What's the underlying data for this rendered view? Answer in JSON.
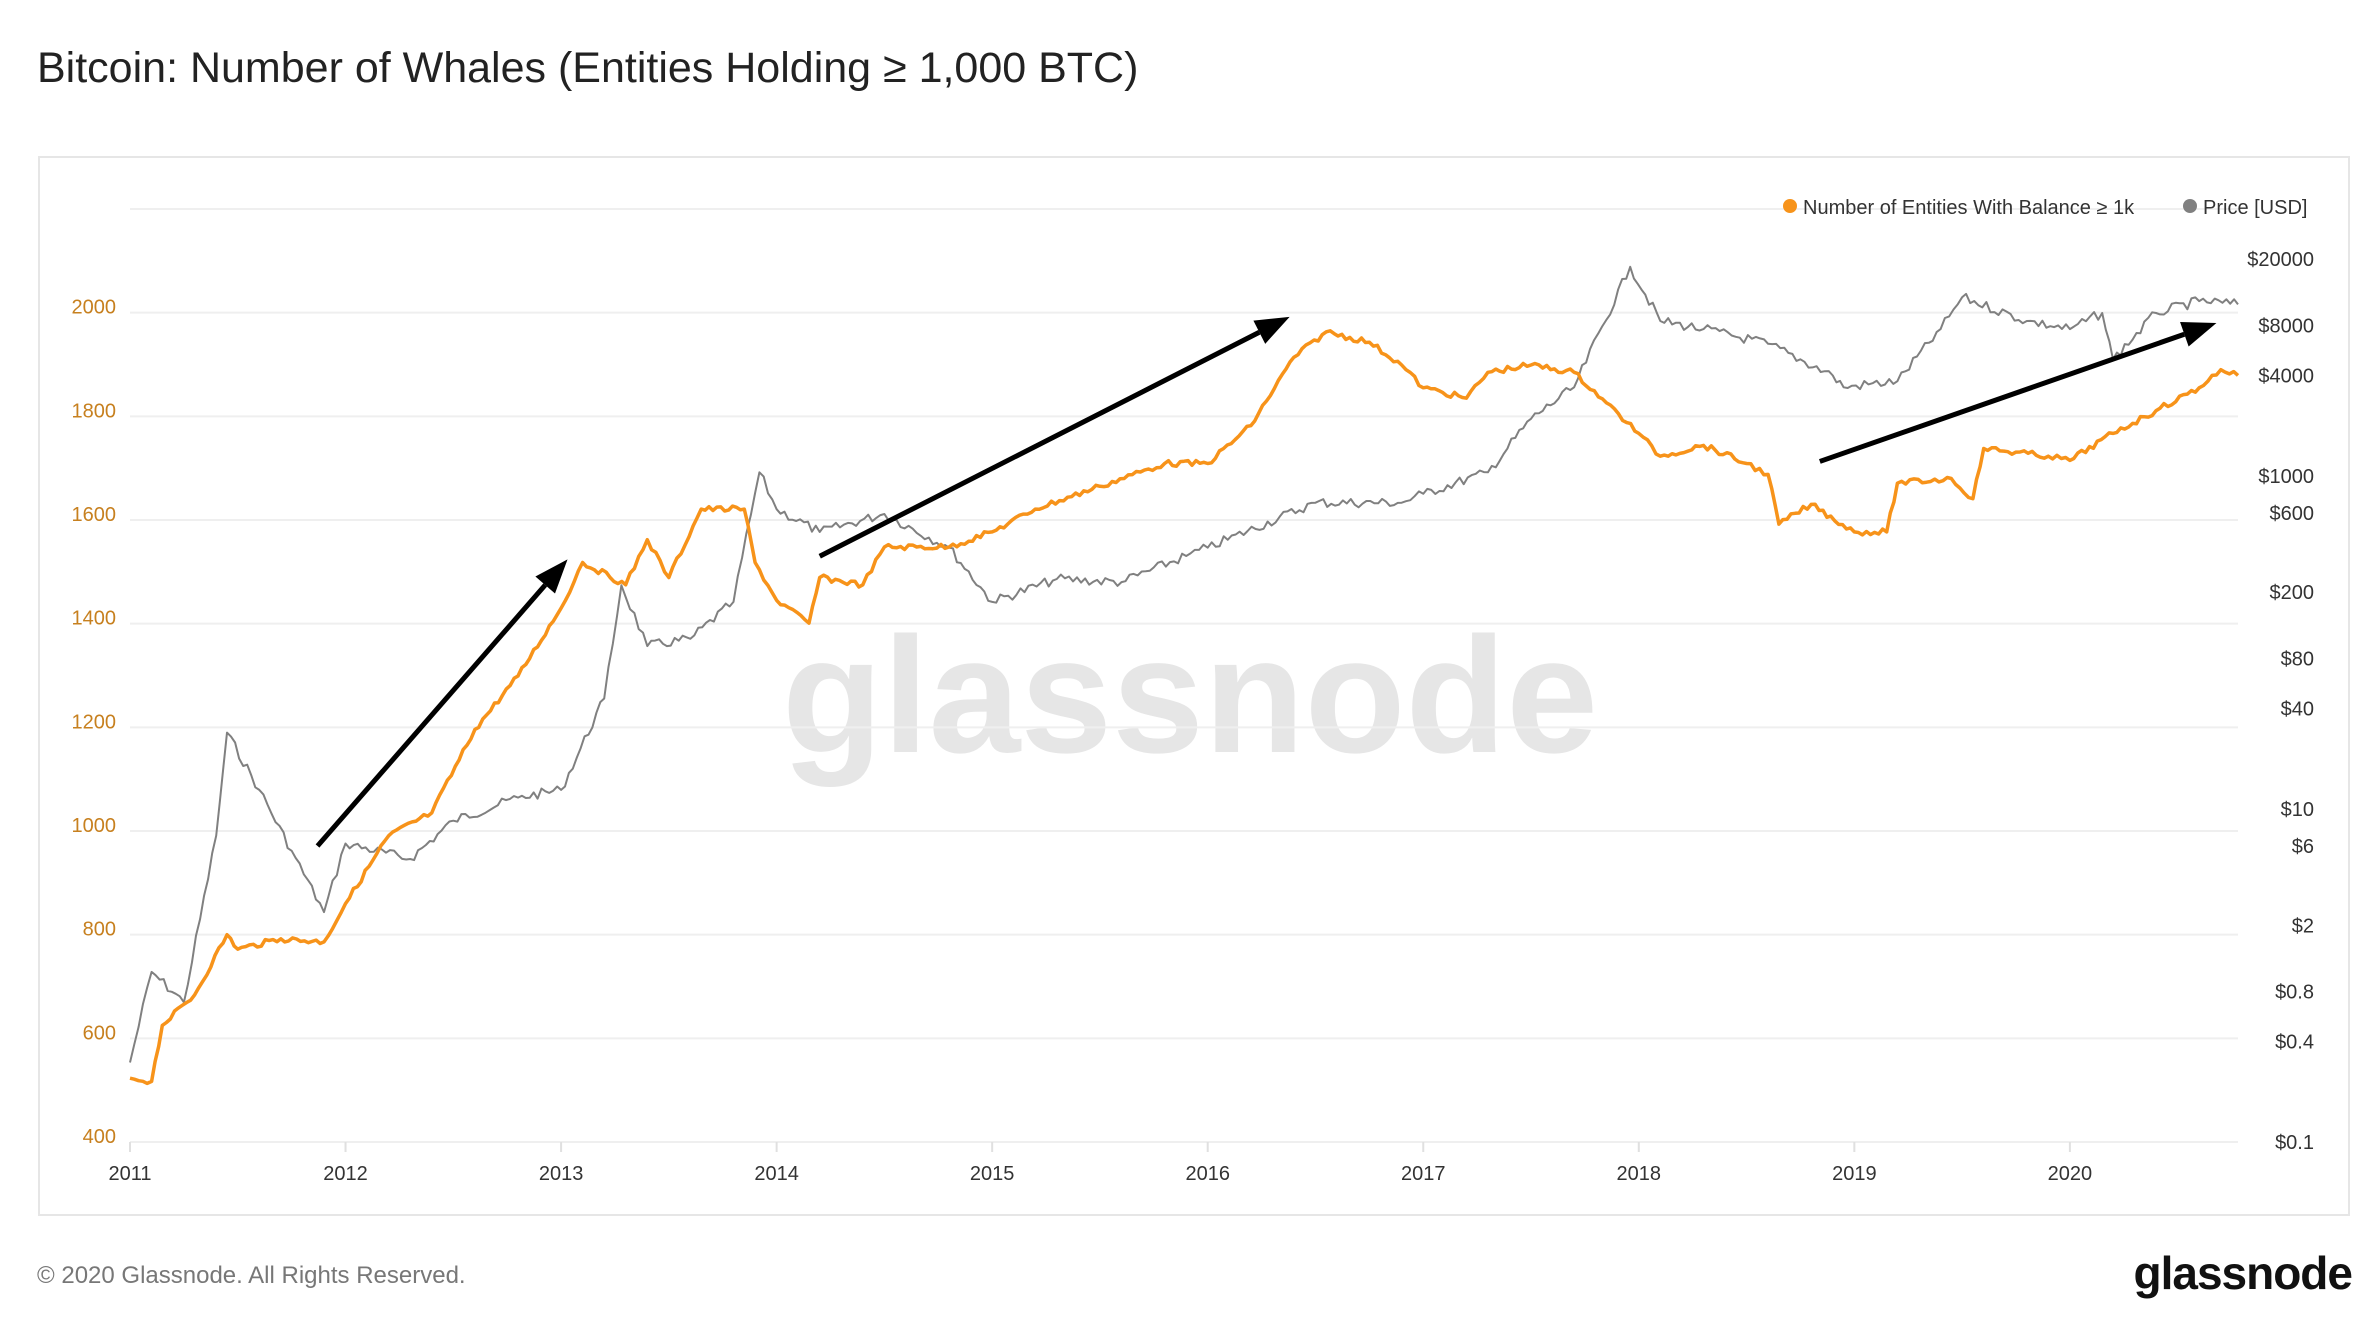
{
  "title": "Bitcoin: Number of Whales (Entities Holding ≥ 1,000 BTC)",
  "footer": {
    "copyright": "© 2020 Glassnode. All Rights Reserved.",
    "logo": "glassnode"
  },
  "watermark": "glassnode",
  "colors": {
    "entities": "#f7931a",
    "price": "#808080",
    "left_axis_labels": "#c7801f",
    "arrows": "#000000",
    "grid": "#efefef"
  },
  "chart_data": {
    "type": "line",
    "title": "Bitcoin: Number of Whales (Entities Holding ≥ 1,000 BTC)",
    "grid": true,
    "legend_position": "top-right",
    "x_ticks": [
      "2011",
      "2012",
      "2013",
      "2014",
      "2015",
      "2016",
      "2017",
      "2018",
      "2019",
      "2020"
    ],
    "xlim": [
      2011,
      2020.78
    ],
    "left_axis": {
      "ylim": [
        400,
        2200
      ],
      "ticks": [
        "400",
        "600",
        "800",
        "1000",
        "1200",
        "1400",
        "1600",
        "1800",
        "2000"
      ]
    },
    "right_axis": {
      "scale": "log",
      "ylim": [
        0.1,
        40000
      ],
      "ticks": [
        {
          "value": 20000,
          "label": "$20000"
        },
        {
          "value": 8000,
          "label": "$8000"
        },
        {
          "value": 4000,
          "label": "$4000"
        },
        {
          "value": 1000,
          "label": "$1000"
        },
        {
          "value": 600,
          "label": "$600"
        },
        {
          "value": 200,
          "label": "$200"
        },
        {
          "value": 80,
          "label": "$80"
        },
        {
          "value": 40,
          "label": "$40"
        },
        {
          "value": 10,
          "label": "$10"
        },
        {
          "value": 6,
          "label": "$6"
        },
        {
          "value": 2,
          "label": "$2"
        },
        {
          "value": 0.8,
          "label": "$0.8"
        },
        {
          "value": 0.4,
          "label": "$0.4"
        },
        {
          "value": 0.1,
          "label": "$0.1"
        }
      ]
    },
    "series": [
      {
        "name": "Number of Entities With Balance ≥ 1k",
        "axis": "left",
        "x": [
          2011.0,
          2011.1,
          2011.15,
          2011.3,
          2011.45,
          2011.5,
          2011.7,
          2011.9,
          2012.0,
          2012.2,
          2012.4,
          2012.6,
          2012.8,
          2013.0,
          2013.1,
          2013.3,
          2013.4,
          2013.5,
          2013.65,
          2013.85,
          2013.9,
          2014.0,
          2014.15,
          2014.2,
          2014.4,
          2014.5,
          2014.8,
          2015.0,
          2015.2,
          2015.5,
          2015.8,
          2016.0,
          2016.2,
          2016.4,
          2016.55,
          2016.75,
          2016.9,
          2017.0,
          2017.2,
          2017.3,
          2017.5,
          2017.7,
          2017.85,
          2018.0,
          2018.1,
          2018.3,
          2018.5,
          2018.6,
          2018.65,
          2018.8,
          2019.0,
          2019.15,
          2019.2,
          2019.45,
          2019.55,
          2019.6,
          2019.9,
          2020.0,
          2020.2,
          2020.4,
          2020.6,
          2020.7,
          2020.78
        ],
        "values": [
          523,
          517,
          625,
          684,
          800,
          772,
          792,
          786,
          860,
          991,
          1035,
          1196,
          1299,
          1430,
          1518,
          1475,
          1562,
          1489,
          1621,
          1621,
          1518,
          1445,
          1401,
          1489,
          1475,
          1548,
          1548,
          1577,
          1621,
          1665,
          1709,
          1709,
          1782,
          1914,
          1963,
          1943,
          1899,
          1855,
          1835,
          1885,
          1899,
          1885,
          1826,
          1767,
          1723,
          1744,
          1709,
          1688,
          1592,
          1630,
          1577,
          1577,
          1671,
          1680,
          1641,
          1738,
          1723,
          1715,
          1767,
          1811,
          1855,
          1890,
          1879
        ]
      },
      {
        "name": "Price [USD]",
        "axis": "right",
        "x": [
          2011.0,
          2011.1,
          2011.25,
          2011.4,
          2011.45,
          2011.6,
          2011.75,
          2011.9,
          2012.0,
          2012.3,
          2012.5,
          2012.8,
          2013.0,
          2013.2,
          2013.28,
          2013.4,
          2013.6,
          2013.8,
          2013.92,
          2014.0,
          2014.2,
          2014.5,
          2014.8,
          2015.0,
          2015.3,
          2015.6,
          2015.9,
          2016.0,
          2016.5,
          2016.9,
          2017.0,
          2017.3,
          2017.5,
          2017.7,
          2017.96,
          2018.1,
          2018.3,
          2018.6,
          2018.9,
          2018.95,
          2019.2,
          2019.4,
          2019.5,
          2019.8,
          2020.0,
          2020.15,
          2020.2,
          2020.4,
          2020.6,
          2020.78
        ],
        "values": [
          0.3,
          1.05,
          0.69,
          6.9,
          28.7,
          13,
          5.6,
          2.4,
          6.2,
          5,
          8.5,
          11.7,
          13,
          46,
          220,
          95,
          105,
          175,
          1050,
          630,
          460,
          590,
          370,
          175,
          240,
          230,
          330,
          370,
          690,
          690,
          780,
          1050,
          2200,
          3400,
          18000,
          8500,
          7600,
          6200,
          4000,
          3400,
          3700,
          7600,
          11800,
          8500,
          7600,
          9500,
          5000,
          9500,
          11200,
          10700
        ]
      }
    ],
    "annotations": [
      {
        "type": "arrow",
        "from": [
          2011.87,
          971
        ],
        "to": [
          2013.03,
          1524
        ]
      },
      {
        "type": "arrow",
        "from": [
          2014.2,
          1530
        ],
        "to": [
          2016.38,
          1992
        ]
      },
      {
        "type": "arrow",
        "from": [
          2018.84,
          1713
        ],
        "to": [
          2020.68,
          1980
        ]
      }
    ]
  }
}
